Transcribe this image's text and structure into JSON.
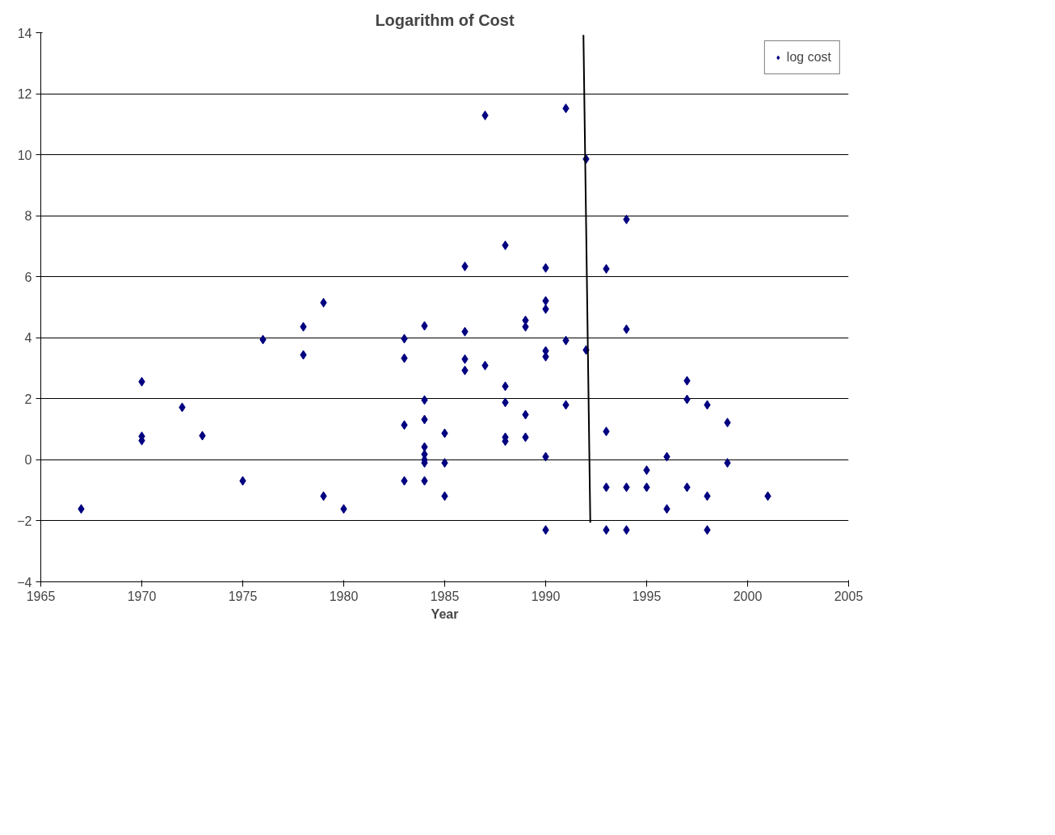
{
  "chart_data": {
    "type": "scatter",
    "title": "Logarithm of Cost",
    "xlabel": "Year",
    "xlim": [
      1965,
      2005
    ],
    "xticks": [
      1965,
      1970,
      1975,
      1980,
      1985,
      1990,
      1995,
      2000,
      2005
    ],
    "ylim": [
      -4,
      14
    ],
    "yticks": [
      -4,
      -2,
      0,
      2,
      4,
      6,
      8,
      10,
      12,
      14
    ],
    "grid": "y",
    "legend": "right",
    "marker": "diamond",
    "series": [
      {
        "name": "log cost",
        "color": "#000080",
        "x": [
          1967,
          1970,
          1970,
          1970,
          1972,
          1973,
          1975,
          1976,
          1978,
          1978,
          1979,
          1979,
          1980,
          1983,
          1983,
          1983,
          1983,
          1984,
          1984,
          1984,
          1984,
          1984,
          1984,
          1984,
          1984,
          1985,
          1985,
          1985,
          1986,
          1986,
          1986,
          1986,
          1987,
          1987,
          1988,
          1988,
          1988,
          1988,
          1988,
          1989,
          1989,
          1989,
          1989,
          1990,
          1990,
          1990,
          1990,
          1990,
          1990,
          1990,
          1991,
          1991,
          1991,
          1992,
          1992,
          1993,
          1993,
          1993,
          1993,
          1994,
          1994,
          1994,
          1994,
          1995,
          1995,
          1996,
          1996,
          1997,
          1997,
          1997,
          1998,
          1998,
          1998,
          1999,
          1999,
          2001
        ],
        "values": [
          -1.61,
          2.56,
          0.77,
          0.63,
          1.72,
          0.79,
          -0.69,
          3.94,
          4.36,
          3.44,
          5.15,
          -1.19,
          -1.61,
          3.97,
          3.33,
          1.14,
          -0.69,
          4.39,
          1.96,
          1.32,
          0.42,
          0.18,
          0,
          -0.1,
          -0.69,
          0.87,
          -0.1,
          -1.19,
          6.34,
          4.2,
          3.3,
          2.93,
          11.29,
          3.09,
          7.03,
          2.41,
          1.88,
          0.74,
          0.61,
          4.57,
          4.36,
          1.48,
          0.74,
          6.29,
          5.21,
          4.94,
          3.57,
          3.38,
          0.1,
          -2.3,
          11.52,
          3.91,
          1.8,
          9.86,
          3.6,
          6.26,
          0.93,
          -0.9,
          -2.3,
          7.88,
          4.28,
          -0.9,
          -2.3,
          -0.34,
          -0.9,
          0.1,
          -1.61,
          2.59,
          1.98,
          -0.9,
          1.8,
          -1.19,
          -2.3,
          1.22,
          -0.1,
          -1.19
        ]
      },
      {
        "type": "line",
        "color": "#000000",
        "marker": "none",
        "x": [
          1991.87,
          1992.21
        ],
        "values": [
          13.93,
          -2.06
        ]
      }
    ]
  }
}
